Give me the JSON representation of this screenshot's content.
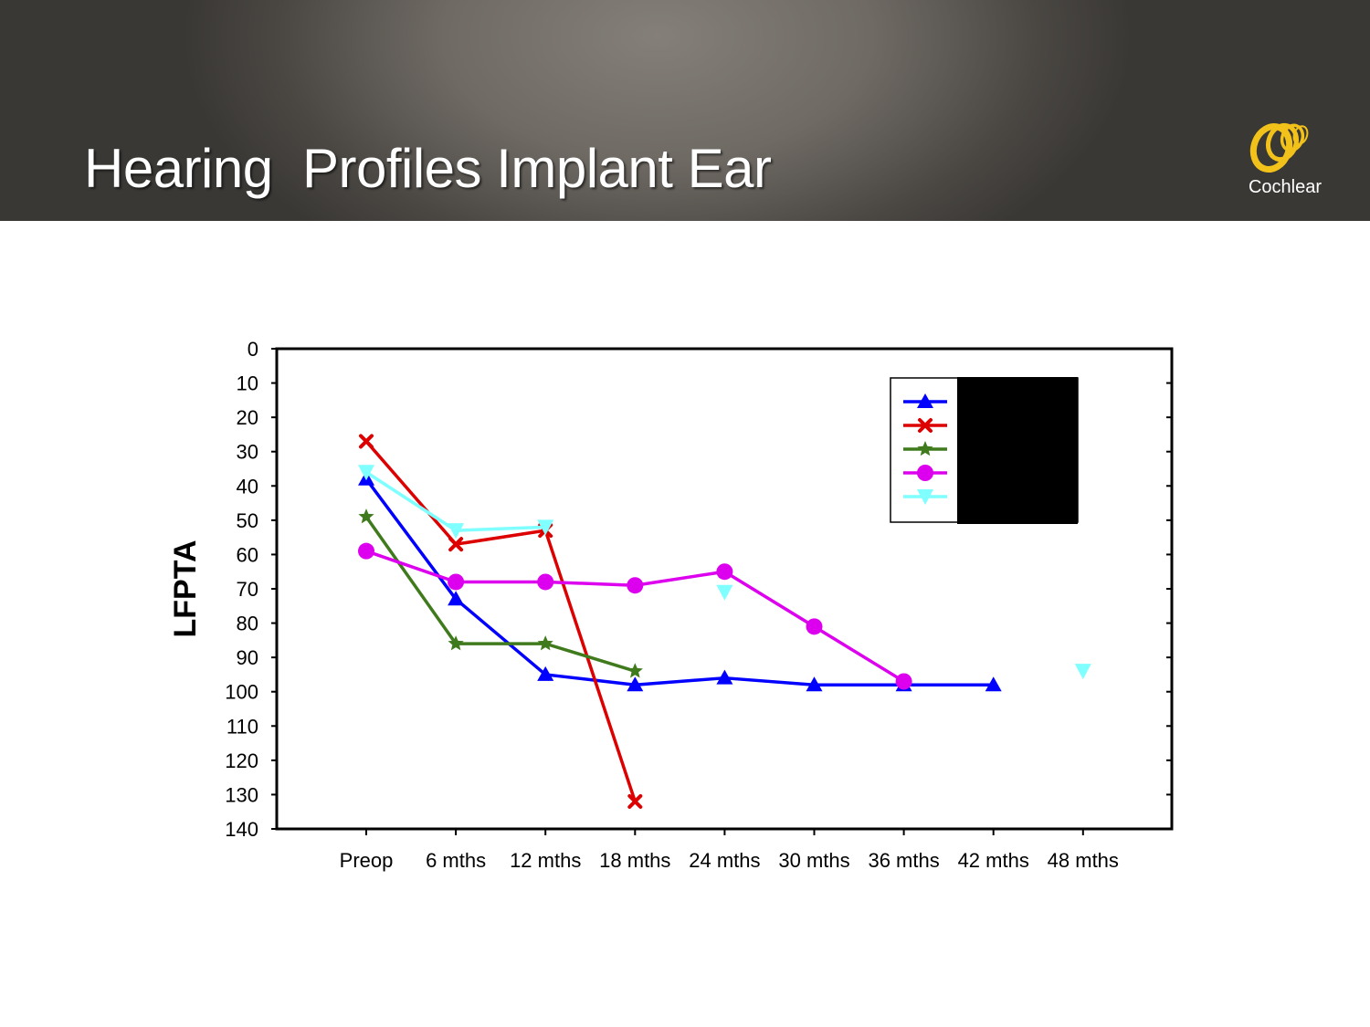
{
  "header": {
    "title": "Hearing  Profiles Implant Ear",
    "logo_text": "Cochlear",
    "logo_icon": "cochlear-swirl-logo",
    "colors": {
      "logo_gold": "#f2c21b"
    }
  },
  "chart_data": {
    "type": "line",
    "title": "",
    "xlabel": "",
    "ylabel": "LFPTA",
    "ylim": [
      0,
      140
    ],
    "y_inverted": true,
    "y_ticks": [
      "0",
      "10",
      "20",
      "30",
      "40",
      "50",
      "60",
      "70",
      "80",
      "90",
      "100",
      "110",
      "120",
      "130",
      "140"
    ],
    "categories": [
      "Preop",
      "6 mths",
      "12 mths",
      "18 mths",
      "24 mths",
      "30 mths",
      "36 mths",
      "42 mths",
      "48 mths"
    ],
    "legend_placement": "top-right",
    "legend_labels_redacted": true,
    "series": [
      {
        "color": "#0000ff",
        "marker": "triangle-up",
        "values": [
          38,
          73,
          95,
          98,
          96,
          98,
          98,
          98,
          null
        ]
      },
      {
        "color": "#dd0000",
        "marker": "x",
        "values": [
          27,
          57,
          53,
          132,
          null,
          null,
          null,
          null,
          null
        ]
      },
      {
        "color": "#3f7a1c",
        "marker": "star",
        "values": [
          49,
          86,
          86,
          94,
          null,
          null,
          null,
          null,
          null
        ]
      },
      {
        "color": "#dd00ee",
        "marker": "circle",
        "values": [
          59,
          68,
          68,
          69,
          65,
          81,
          97,
          null,
          null
        ]
      },
      {
        "color": "#7fffff",
        "marker": "triangle-down",
        "values": [
          36,
          53,
          52,
          null,
          71,
          null,
          null,
          null,
          94
        ]
      }
    ]
  }
}
